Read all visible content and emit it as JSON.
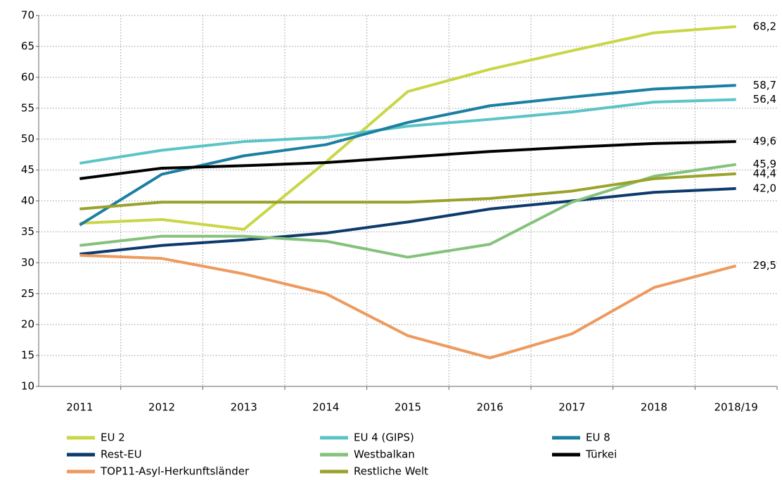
{
  "chart_data": {
    "type": "line",
    "categories": [
      "2011",
      "2012",
      "2013",
      "2014",
      "2015",
      "2016",
      "2017",
      "2018",
      "2018/19"
    ],
    "ylim": [
      10,
      70
    ],
    "yticks": [
      10,
      15,
      20,
      25,
      30,
      35,
      40,
      45,
      50,
      55,
      60,
      65,
      70
    ],
    "grid": true,
    "legend": "bottom",
    "series": [
      {
        "name": "EU 2",
        "color": "#c9d646",
        "values": [
          36.4,
          37.0,
          35.4,
          46.3,
          57.7,
          61.3,
          64.3,
          67.2,
          68.2
        ],
        "value_labels": [
          null,
          null,
          null,
          null,
          null,
          null,
          null,
          null,
          "68,2"
        ]
      },
      {
        "name": "EU 4 (GIPS)",
        "color": "#5cc4c6",
        "values": [
          46.1,
          48.2,
          49.6,
          50.3,
          52.1,
          53.2,
          54.4,
          56.0,
          56.4
        ],
        "value_labels": [
          null,
          null,
          null,
          null,
          null,
          null,
          null,
          null,
          "56,4"
        ]
      },
      {
        "name": "EU 8",
        "color": "#1b7fa2",
        "values": [
          36.1,
          44.3,
          47.3,
          49.1,
          52.7,
          55.4,
          56.8,
          58.1,
          58.7
        ],
        "value_labels": [
          null,
          null,
          null,
          null,
          null,
          null,
          null,
          null,
          "58,7"
        ]
      },
      {
        "name": "Rest-EU",
        "color": "#0d3a6c",
        "values": [
          31.4,
          32.8,
          33.7,
          34.8,
          36.6,
          38.7,
          40.0,
          41.4,
          42.0
        ],
        "value_labels": [
          null,
          null,
          null,
          null,
          null,
          null,
          null,
          null,
          "42,0"
        ]
      },
      {
        "name": "Westbalkan",
        "color": "#84c27b",
        "values": [
          32.8,
          34.3,
          34.3,
          33.5,
          30.9,
          33.0,
          39.8,
          44.0,
          45.9
        ],
        "value_labels": [
          null,
          null,
          null,
          null,
          null,
          null,
          null,
          null,
          "45,9"
        ]
      },
      {
        "name": "Türkei",
        "color": "#000000",
        "values": [
          43.6,
          45.3,
          45.7,
          46.2,
          47.1,
          48.0,
          48.7,
          49.3,
          49.6
        ],
        "value_labels": [
          null,
          null,
          null,
          null,
          null,
          null,
          null,
          null,
          "49,6"
        ]
      },
      {
        "name": "TOP11-Asyl-Herkunftsländer",
        "color": "#ed9a5e",
        "values": [
          31.2,
          30.7,
          28.2,
          25.0,
          18.2,
          14.6,
          18.5,
          26.0,
          29.5
        ],
        "value_labels": [
          null,
          null,
          null,
          null,
          null,
          null,
          null,
          null,
          "29,5"
        ]
      },
      {
        "name": "Restliche Welt",
        "color": "#9ba22c",
        "values": [
          38.7,
          39.8,
          39.8,
          39.8,
          39.8,
          40.4,
          41.6,
          43.6,
          44.4
        ],
        "value_labels": [
          null,
          null,
          null,
          null,
          null,
          null,
          null,
          null,
          "44,4"
        ]
      }
    ]
  }
}
